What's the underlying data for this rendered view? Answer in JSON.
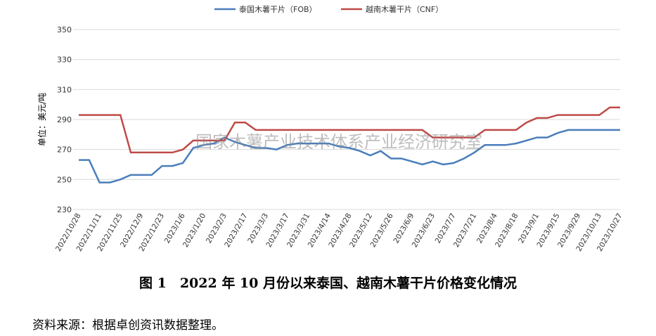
{
  "chart_data": {
    "type": "line",
    "y_label": "单位：美元/吨",
    "watermark": "国家木薯产业技术体系产业经济研究室",
    "categories": [
      "2022/10/28",
      null,
      "2022/11/11",
      null,
      "2022/11/25",
      null,
      "2022/12/9",
      null,
      "2022/12/23",
      null,
      "2023/1/6",
      null,
      "2023/1/20",
      null,
      "2023/2/3",
      null,
      "2023/2/17",
      null,
      "2023/3/3",
      null,
      "2023/3/17",
      null,
      "2023/3/31",
      null,
      "2023/4/14",
      null,
      "2023/4/28",
      null,
      "2023/5/12",
      null,
      "2023/5/26",
      null,
      "2023/6/9",
      null,
      "2023/6/23",
      null,
      "2023/7/7",
      null,
      "2023/7/21",
      null,
      "2023/8/4",
      null,
      "2023/8/18",
      null,
      "2023/9/1",
      null,
      "2023/9/15",
      null,
      "2023/9/29",
      null,
      "2023/10/13",
      null,
      "2023/10/27"
    ],
    "series": [
      {
        "name": "泰国木薯干片（FOB）",
        "color": "#4a7ebb",
        "values": [
          263,
          263,
          248,
          248,
          250,
          253,
          253,
          253,
          259,
          259,
          261,
          271,
          273,
          274,
          278,
          275,
          273,
          271,
          271,
          270,
          273,
          274,
          274,
          274,
          274,
          272,
          271,
          269,
          266,
          269,
          264,
          264,
          262,
          260,
          262,
          260,
          261,
          264,
          268,
          273,
          273,
          273,
          274,
          276,
          278,
          278,
          281,
          283,
          283,
          283,
          283,
          283,
          283
        ]
      },
      {
        "name": "越南木薯干片（CNF）",
        "color": "#be4b48",
        "values": [
          293,
          293,
          293,
          293,
          293,
          268,
          268,
          268,
          268,
          268,
          270,
          276,
          276,
          276,
          276,
          288,
          288,
          283,
          283,
          283,
          283,
          283,
          283,
          283,
          283,
          283,
          283,
          283,
          283,
          283,
          283,
          283,
          283,
          283,
          278,
          278,
          278,
          278,
          278,
          283,
          283,
          283,
          283,
          288,
          291,
          291,
          293,
          293,
          293,
          293,
          293,
          298,
          298
        ]
      }
    ],
    "ylim": [
      230,
      350
    ],
    "yticks": [
      230,
      250,
      270,
      290,
      310,
      330,
      350
    ],
    "grid": true,
    "legend": "top"
  },
  "caption": "图 1　2022 年 10 月份以来泰国、越南木薯干片价格变化情况",
  "source": "资料来源：根据卓创资讯数据整理。"
}
